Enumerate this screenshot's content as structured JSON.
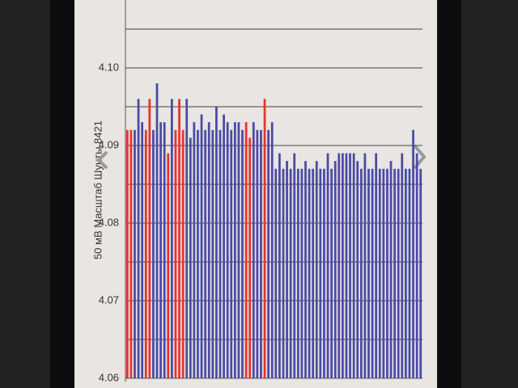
{
  "chart_data": {
    "type": "bar",
    "ylabel": "50 мВ Масштаб  Шунты 8421",
    "categories": [
      null,
      null,
      null,
      null,
      null,
      null,
      null,
      null,
      null,
      null,
      null,
      null,
      null,
      null,
      null,
      null,
      null,
      null,
      null,
      null,
      null,
      null,
      null,
      null,
      null,
      null,
      null,
      null,
      null,
      null,
      null,
      null,
      null,
      null,
      null,
      null,
      null,
      null,
      null,
      null,
      null,
      null,
      null,
      null,
      null,
      null,
      null,
      null,
      null,
      null,
      null,
      null,
      null,
      null,
      null,
      null,
      null,
      null,
      null,
      null,
      null,
      null,
      null,
      null,
      null,
      null,
      null,
      null,
      null,
      null,
      null,
      null,
      null,
      null,
      null,
      null,
      null,
      null,
      null,
      null
    ],
    "values": [
      4.092,
      4.092,
      4.092,
      4.096,
      4.093,
      4.092,
      4.096,
      4.092,
      4.098,
      4.093,
      4.093,
      4.089,
      4.096,
      4.092,
      4.096,
      4.092,
      4.096,
      4.091,
      4.093,
      4.092,
      4.094,
      4.092,
      4.093,
      4.092,
      4.095,
      4.092,
      4.094,
      4.093,
      4.092,
      4.093,
      4.093,
      4.092,
      4.093,
      4.091,
      4.093,
      4.092,
      4.092,
      4.096,
      4.092,
      4.093,
      4.087,
      4.089,
      4.087,
      4.088,
      4.087,
      4.089,
      4.087,
      4.087,
      4.088,
      4.087,
      4.087,
      4.088,
      4.087,
      4.087,
      4.089,
      4.087,
      4.088,
      4.089,
      4.089,
      4.089,
      4.089,
      4.089,
      4.088,
      4.087,
      4.089,
      4.087,
      4.087,
      4.089,
      4.087,
      4.087,
      4.087,
      4.088,
      4.087,
      4.087,
      4.089,
      4.087,
      4.087,
      4.092,
      4.089,
      4.087
    ],
    "colors": [
      "#e8322e",
      "#e8322e",
      "#4a4aa6",
      "#4a4aa6",
      "#4a4aa6",
      "#e8322e",
      "#e8322e",
      "#4a4aa6",
      "#4a4aa6",
      "#4a4aa6",
      "#4a4aa6",
      "#e8322e",
      "#4a4aa6",
      "#e8322e",
      "#e8322e",
      "#e8322e",
      "#4a4aa6",
      "#4a4aa6",
      "#4a4aa6",
      "#4a4aa6",
      "#4a4aa6",
      "#4a4aa6",
      "#4a4aa6",
      "#4a4aa6",
      "#4a4aa6",
      "#4a4aa6",
      "#4a4aa6",
      "#4a4aa6",
      "#4a4aa6",
      "#4a4aa6",
      "#4a4aa6",
      "#4a4aa6",
      "#e8322e",
      "#e8322e",
      "#4a4aa6",
      "#4a4aa6",
      "#4a4aa6",
      "#e8322e",
      "#4a4aa6",
      "#4a4aa6",
      "#4a4aa6",
      "#4a4aa6",
      "#4a4aa6",
      "#4a4aa6",
      "#4a4aa6",
      "#4a4aa6",
      "#4a4aa6",
      "#4a4aa6",
      "#4a4aa6",
      "#4a4aa6",
      "#4a4aa6",
      "#4a4aa6",
      "#4a4aa6",
      "#4a4aa6",
      "#4a4aa6",
      "#4a4aa6",
      "#4a4aa6",
      "#4a4aa6",
      "#4a4aa6",
      "#4a4aa6",
      "#4a4aa6",
      "#4a4aa6",
      "#4a4aa6",
      "#4a4aa6",
      "#4a4aa6",
      "#4a4aa6",
      "#4a4aa6",
      "#4a4aa6",
      "#4a4aa6",
      "#4a4aa6",
      "#4a4aa6",
      "#4a4aa6",
      "#4a4aa6",
      "#4a4aa6",
      "#4a4aa6",
      "#4a4aa6",
      "#4a4aa6",
      "#4a4aa6",
      "#4a4aa6",
      "#4a4aa6"
    ],
    "ylim": [
      4.06,
      4.109
    ],
    "yticks": [
      4.06,
      4.07,
      4.08,
      4.09,
      {
        "value": 4.1,
        "label": "4.10"
      }
    ],
    "gridlines": [
      4.065,
      4.07,
      4.075,
      4.08,
      4.085,
      4.09,
      4.095,
      4.1,
      4.105
    ],
    "grid": true
  }
}
